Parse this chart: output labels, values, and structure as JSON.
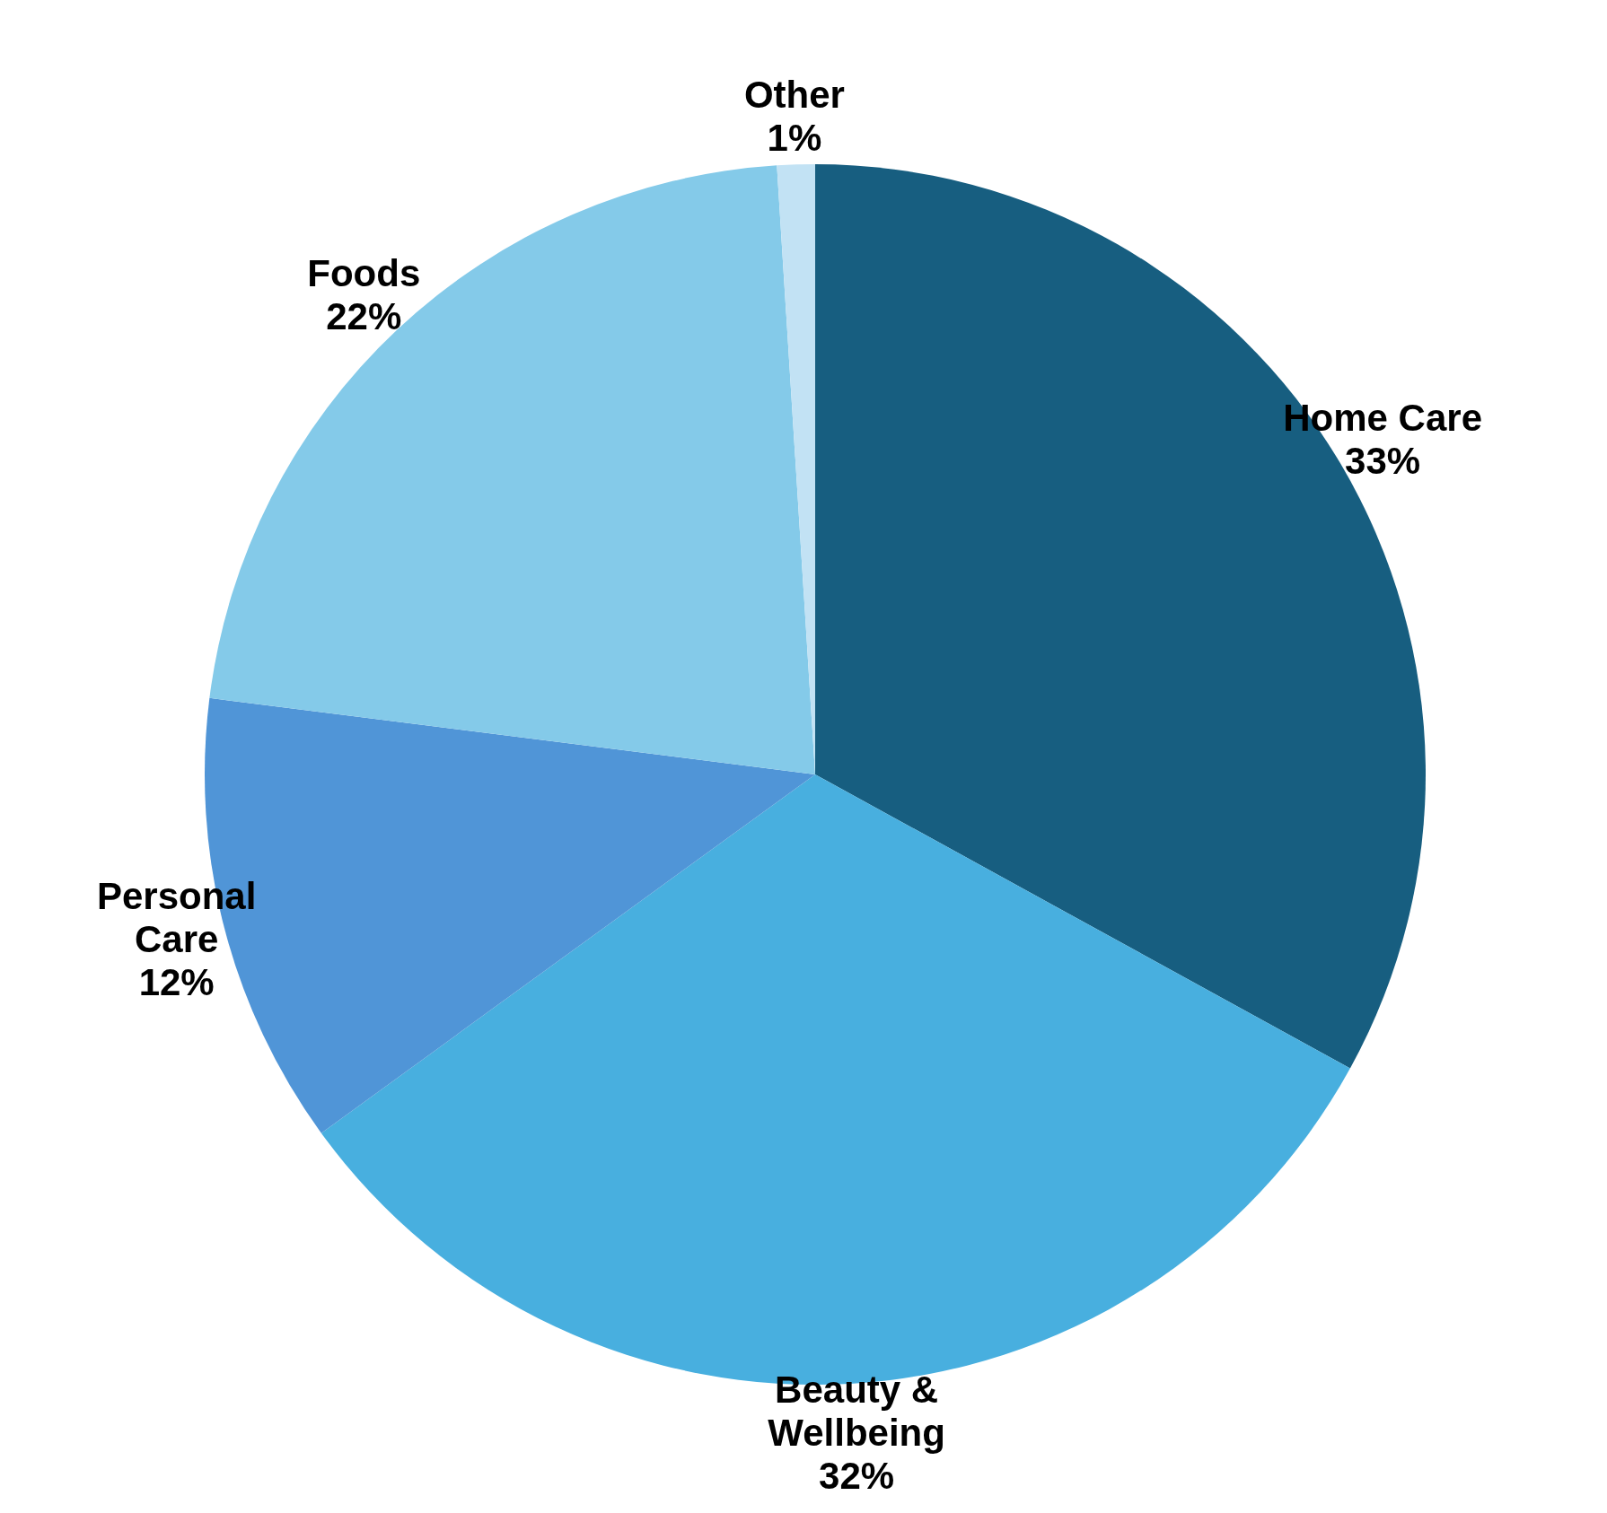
{
  "chart_data": {
    "type": "pie",
    "categories": [
      "Home Care",
      "Beauty & Wellbeing",
      "Personal Care",
      "Foods",
      "Other"
    ],
    "values": [
      33,
      32,
      12,
      22,
      1
    ],
    "value_labels": [
      "33%",
      "32%",
      "12%",
      "22%",
      "1%"
    ],
    "colors": [
      "#175e80",
      "#48afdf",
      "#5095d7",
      "#84cae9",
      "#c2e2f4"
    ],
    "legend": false
  }
}
